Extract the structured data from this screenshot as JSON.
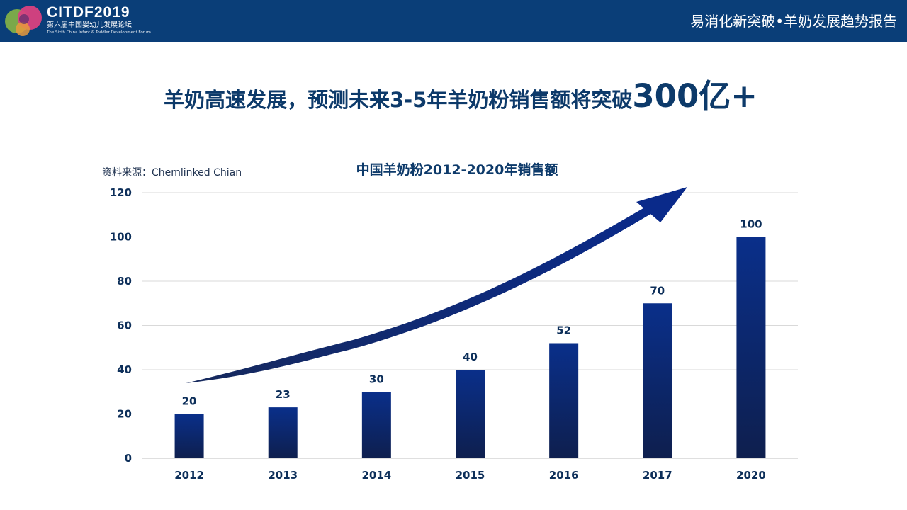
{
  "header": {
    "logo_main": "CITDF2019",
    "logo_sub": "第六届中国婴幼儿发展论坛",
    "logo_en": "The Sixth China Infant & Toddler Development Forum",
    "title": "易消化新突破•羊奶发展趋势报告"
  },
  "headline": {
    "text": "羊奶高速发展，预测未来3-5年羊奶粉销售额将突破",
    "highlight": "300亿+"
  },
  "source_note": "资料来源：Chemlinked Chian",
  "colors": {
    "header_bg": "#0a3e78",
    "bar_top": "#0a2f8a",
    "bar_bottom": "#0e1f4e",
    "arrow": "#0a2a7a"
  },
  "chart_data": {
    "type": "bar",
    "title": "中国羊奶粉2012-2020年销售额",
    "categories": [
      "2012",
      "2013",
      "2014",
      "2015",
      "2016",
      "2017",
      "2020"
    ],
    "values": [
      20,
      23,
      30,
      40,
      52,
      70,
      100
    ],
    "ylim": [
      0,
      120
    ],
    "yticks": [
      "0",
      "20",
      "40",
      "60",
      "80",
      "100",
      "120"
    ],
    "grid": true,
    "annotation": "upward-trend-arrow"
  }
}
